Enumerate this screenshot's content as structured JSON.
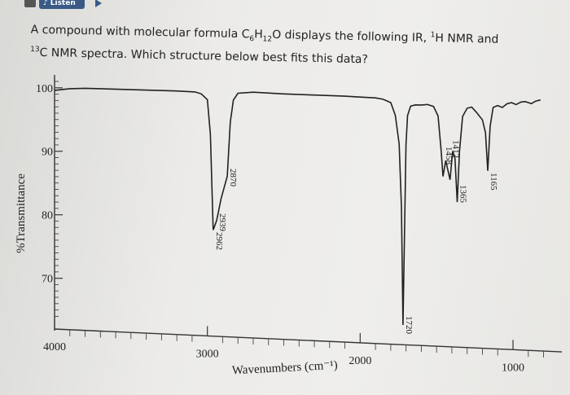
{
  "toolbar": {
    "listen_label": "Listen",
    "menu_icon": "menu-icon",
    "speaker_icon": "speaker-icon",
    "play_icon": "play-icon"
  },
  "question": {
    "part1": "A compound with molecular formula C",
    "sub1": "6",
    "part2": "H",
    "sub2": "12",
    "part3": "O displays the following IR, ",
    "sup1": "1",
    "part4": "H NMR and",
    "sup2": "13",
    "part5": "C NMR spectra. Which structure below best fits this data?"
  },
  "chart_data": {
    "type": "line",
    "title": "",
    "xlabel": "Wavenumbers (cm⁻¹)",
    "ylabel": "%Transmittance",
    "x_reversed": true,
    "xlim": [
      4000,
      800
    ],
    "ylim": [
      62,
      101
    ],
    "x_ticks": [
      4000,
      3000,
      2000,
      1000
    ],
    "y_ticks": [
      100,
      90,
      80,
      70
    ],
    "grid": false,
    "series": [
      {
        "x": [
          4000,
          3900,
          3800,
          3500,
          3200,
          3080,
          3040,
          3000,
          2980,
          2962,
          2939,
          2910,
          2870,
          2850,
          2830,
          2800,
          2700,
          2500,
          2300,
          2100,
          2000,
          1900,
          1850,
          1800,
          1770,
          1745,
          1730,
          1720,
          1712,
          1700,
          1690,
          1670,
          1640,
          1600,
          1560,
          1520,
          1490,
          1470,
          1458,
          1440,
          1412,
          1395,
          1380,
          1365,
          1350,
          1330,
          1300,
          1270,
          1240,
          1200,
          1180,
          1165,
          1150,
          1130,
          1100,
          1070,
          1040,
          1010,
          980,
          950,
          920,
          880,
          850,
          820
        ],
        "y": [
          99.6,
          99.9,
          100,
          99.9,
          99.8,
          99.7,
          99.4,
          98.5,
          93,
          78,
          79.5,
          83,
          86.5,
          95,
          98.5,
          99.6,
          99.8,
          99.6,
          99.5,
          99.4,
          99.3,
          99.2,
          99,
          98.5,
          96.5,
          92,
          82,
          63.5,
          75,
          92,
          96.5,
          98,
          98.2,
          98.2,
          98.3,
          98,
          96.5,
          91,
          87,
          89.5,
          86.5,
          91,
          90,
          83,
          91,
          96.5,
          97.8,
          98,
          97.2,
          96,
          94,
          88,
          95,
          98,
          98.3,
          98,
          98.6,
          98.8,
          98.5,
          98.9,
          99,
          98.7,
          99.1,
          99.3
        ]
      }
    ],
    "peak_labels": [
      {
        "x": 2962,
        "label": "2962"
      },
      {
        "x": 2939,
        "label": "2939"
      },
      {
        "x": 2870,
        "label": "2870"
      },
      {
        "x": 1720,
        "label": "1720"
      },
      {
        "x": 1458,
        "label": "1458"
      },
      {
        "x": 1412,
        "label": "1412"
      },
      {
        "x": 1365,
        "label": "1365"
      },
      {
        "x": 1165,
        "label": "1165"
      }
    ]
  }
}
